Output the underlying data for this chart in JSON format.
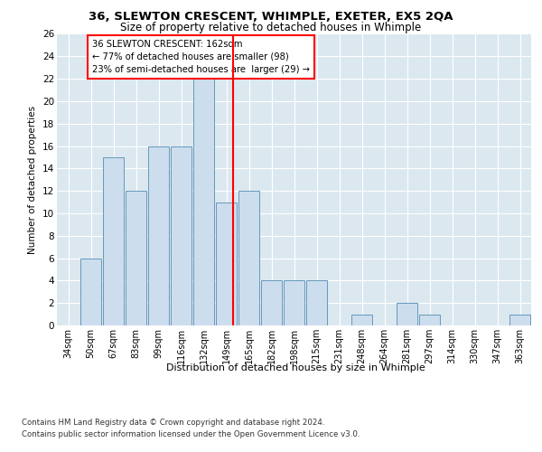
{
  "title1": "36, SLEWTON CRESCENT, WHIMPLE, EXETER, EX5 2QA",
  "title2": "Size of property relative to detached houses in Whimple",
  "xlabel": "Distribution of detached houses by size in Whimple",
  "ylabel": "Number of detached properties",
  "categories": [
    "34sqm",
    "50sqm",
    "67sqm",
    "83sqm",
    "99sqm",
    "116sqm",
    "132sqm",
    "149sqm",
    "165sqm",
    "182sqm",
    "198sqm",
    "215sqm",
    "231sqm",
    "248sqm",
    "264sqm",
    "281sqm",
    "297sqm",
    "314sqm",
    "330sqm",
    "347sqm",
    "363sqm"
  ],
  "values": [
    0,
    6,
    15,
    12,
    16,
    16,
    22,
    11,
    12,
    4,
    4,
    4,
    0,
    1,
    0,
    2,
    1,
    0,
    0,
    0,
    1
  ],
  "bar_color": "#ccdded",
  "bar_edgecolor": "#6699bb",
  "bar_linewidth": 0.7,
  "ylim": [
    0,
    26
  ],
  "yticks": [
    0,
    2,
    4,
    6,
    8,
    10,
    12,
    14,
    16,
    18,
    20,
    22,
    24,
    26
  ],
  "annotation_line1": "36 SLEWTON CRESCENT: 162sqm",
  "annotation_line2": "← 77% of detached houses are smaller (98)",
  "annotation_line3": "23% of semi-detached houses are  larger (29) →",
  "plot_bg_color": "#dce8f0",
  "footer1": "Contains HM Land Registry data © Crown copyright and database right 2024.",
  "footer2": "Contains public sector information licensed under the Open Government Licence v3.0."
}
